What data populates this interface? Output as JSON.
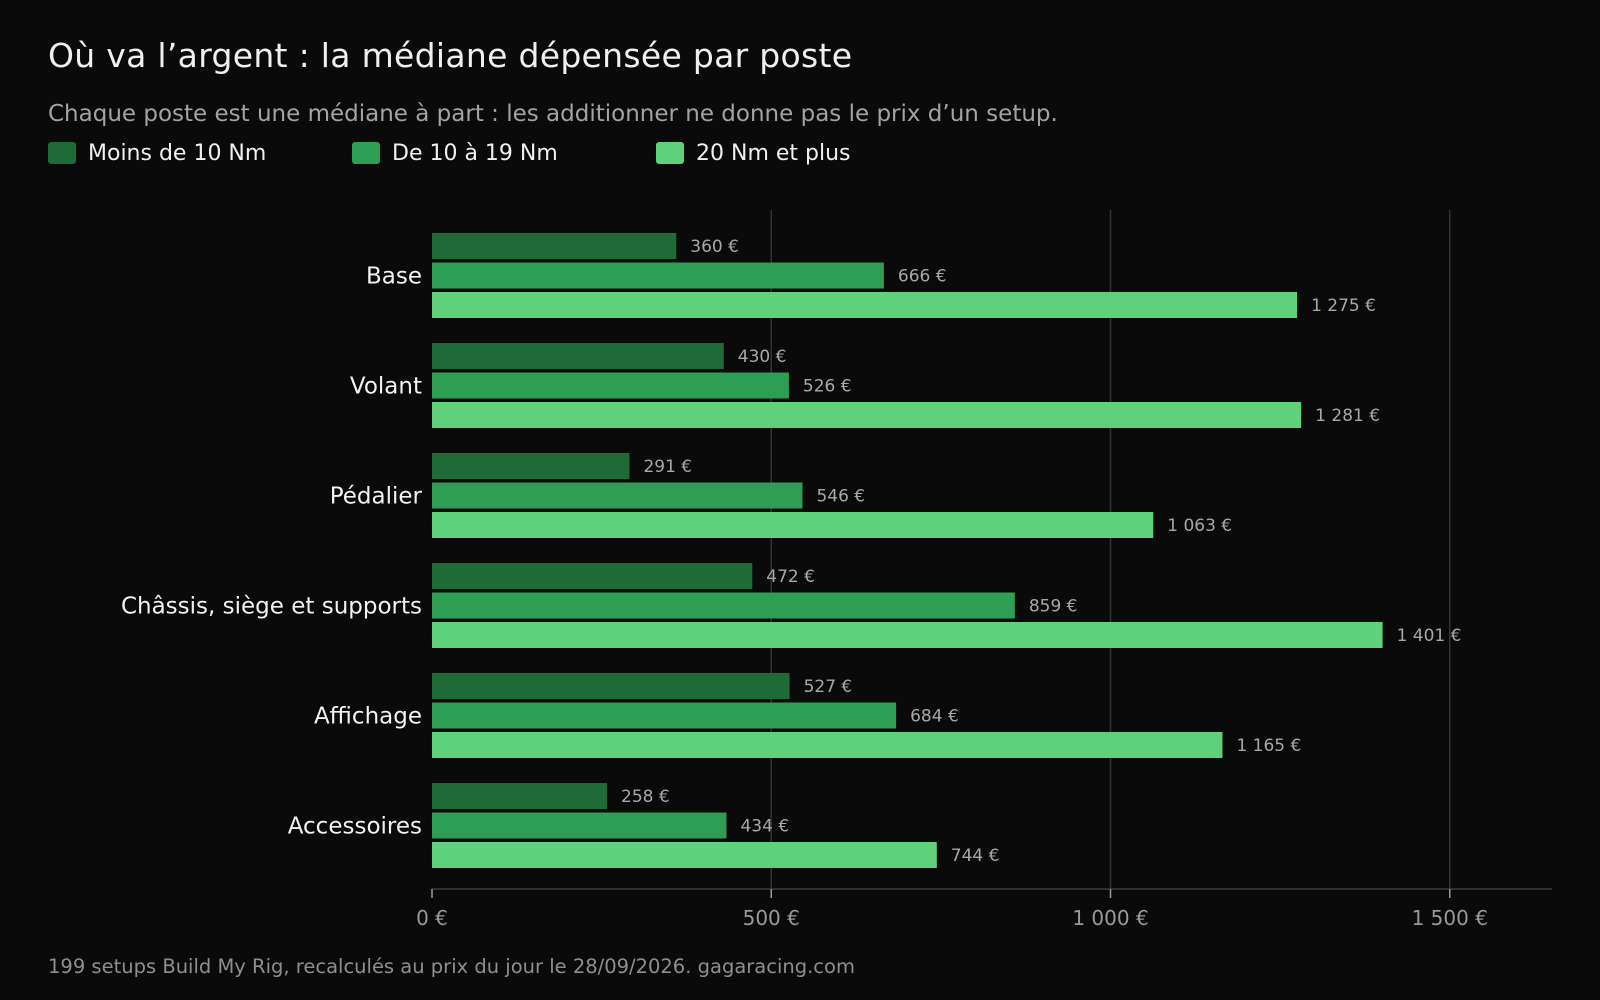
{
  "title": "Où va l’argent : la médiane dépensée par poste",
  "subtitle": "Chaque poste est une médiane à part : les additionner ne donne pas le prix d’un setup.",
  "footer": "199 setups Build My Rig, recalculés au prix du jour le 28/09/2026. gagaracing.com",
  "chart_data": {
    "type": "bar",
    "orientation": "horizontal",
    "categories": [
      "Base",
      "Volant",
      "Pédalier",
      "Châssis, siège et supports",
      "Affichage",
      "Accessoires"
    ],
    "series": [
      {
        "name": "Moins de 10 Nm",
        "color": "#1e6b38",
        "values": [
          360,
          430,
          291,
          472,
          527,
          258
        ],
        "value_labels": [
          "360 €",
          "430 €",
          "291 €",
          "472 €",
          "527 €",
          "258 €"
        ]
      },
      {
        "name": "De 10 à 19 Nm",
        "color": "#2f9e55",
        "values": [
          666,
          526,
          546,
          859,
          684,
          434
        ],
        "value_labels": [
          "666 €",
          "526 €",
          "546 €",
          "859 €",
          "684 €",
          "434 €"
        ]
      },
      {
        "name": "20 Nm et plus",
        "color": "#5fd07c",
        "values": [
          1275,
          1281,
          1063,
          1401,
          1165,
          744
        ],
        "value_labels": [
          "1 275 €",
          "1 281 €",
          "1 063 €",
          "1 401 €",
          "1 165 €",
          "744 €"
        ]
      }
    ],
    "xlim": [
      0,
      1650
    ],
    "xticks": [
      0,
      500,
      1000,
      1500
    ],
    "xtick_labels": [
      "0 €",
      "500 €",
      "1 000 €",
      "1 500 €"
    ],
    "grid": "vertical",
    "legend_position": "top-left",
    "xlabel": "",
    "ylabel": ""
  }
}
